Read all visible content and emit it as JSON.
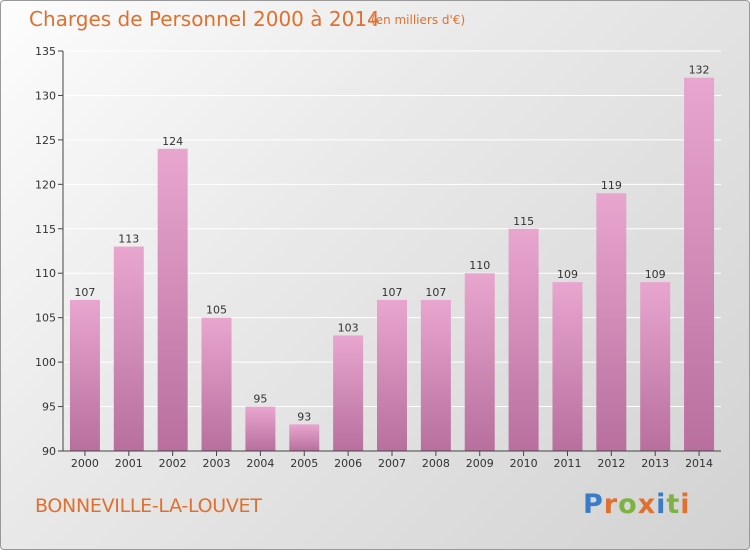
{
  "header": {
    "title": "Charges de Personnel 2000 à 2014",
    "subtitle": "(en milliers d'€)"
  },
  "footer": {
    "commune": "BONNEVILLE-LA-LOUVET",
    "logo_text": "Proxiti",
    "logo_colors": [
      "#3a7cc8",
      "#e0702e",
      "#7cb342",
      "#e0702e",
      "#3a7cc8",
      "#7cb342",
      "#e0702e"
    ]
  },
  "colors": {
    "bar_top": "#e8a6cf",
    "bar_bottom": "#b86f9e",
    "axis": "#444444",
    "grid": "#ffffff"
  },
  "chart_data": {
    "type": "bar",
    "title": "Charges de Personnel 2000 à 2014",
    "subtitle": "(en milliers d'€)",
    "categories": [
      "2000",
      "2001",
      "2002",
      "2003",
      "2004",
      "2005",
      "2006",
      "2007",
      "2008",
      "2009",
      "2010",
      "2011",
      "2012",
      "2013",
      "2014"
    ],
    "values": [
      107,
      113,
      124,
      105,
      95,
      93,
      103,
      107,
      107,
      110,
      115,
      109,
      119,
      109,
      132
    ],
    "data_labels": [
      "107",
      "113",
      "124",
      "105",
      "95",
      "93",
      "103",
      "107",
      "107",
      "110",
      "115",
      "109",
      "119",
      "109",
      "132"
    ],
    "ylim": [
      90,
      135
    ],
    "yticks": [
      "90",
      "95",
      "100",
      "105",
      "110",
      "115",
      "120",
      "125",
      "130",
      "135"
    ],
    "grid": true,
    "xlabel": "",
    "ylabel": ""
  }
}
